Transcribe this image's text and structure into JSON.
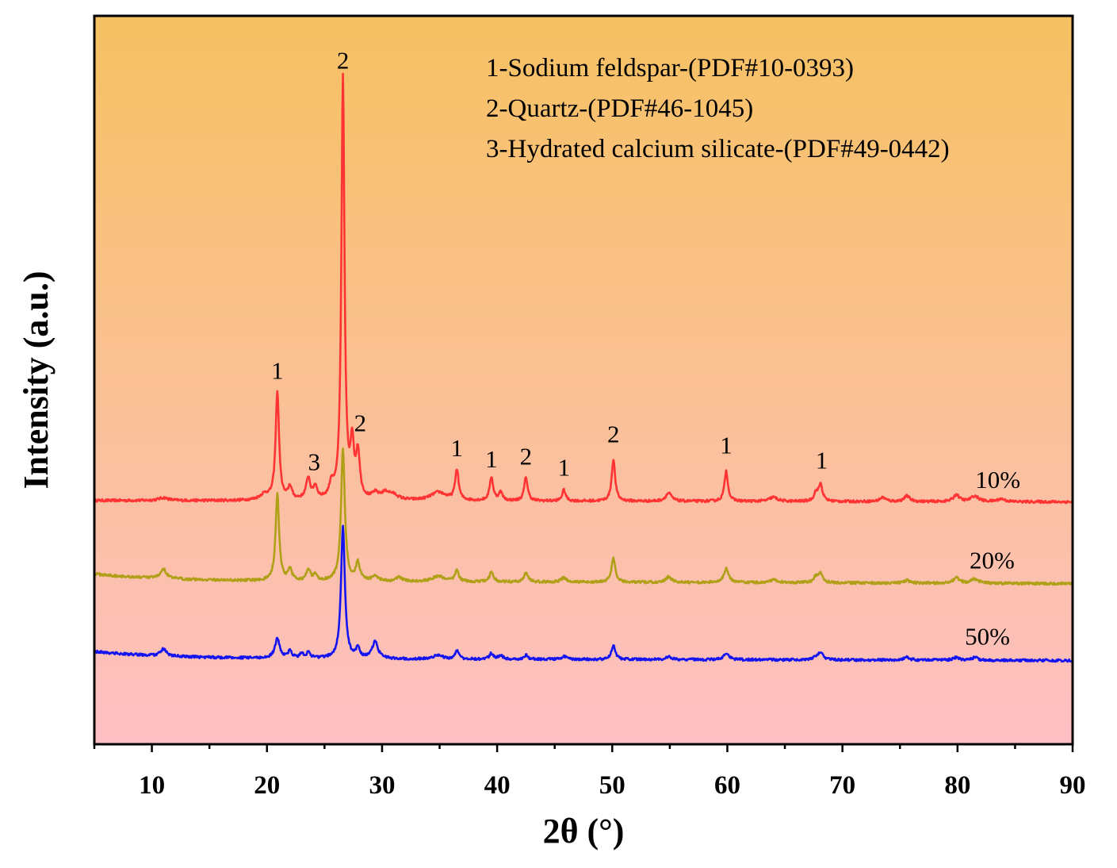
{
  "chart_data": {
    "type": "line",
    "xlabel": "2θ (°)",
    "ylabel": "Intensity (a.u.)",
    "xlim": [
      5,
      90
    ],
    "x_ticks": [
      10,
      20,
      30,
      40,
      50,
      60,
      70,
      80,
      90
    ],
    "y_ticks_shown": false,
    "grid": false,
    "background_gradient": [
      "#f6c162",
      "#fec0c4"
    ],
    "legend": {
      "placement": "top-right",
      "entries": [
        "1-Sodium feldspar-(PDF#10-0393)",
        "2-Quartz-(PDF#46-1045)",
        "3-Hydrated calcium silicate-(PDF#49-0442)"
      ]
    },
    "series": [
      {
        "name": "10%",
        "color": "#ff3333",
        "baseline": 0.78,
        "baseline_slope": -0.01,
        "peaks": [
          [
            11.0,
            0.02,
            0.5
          ],
          [
            19.8,
            0.04,
            0.5
          ],
          [
            20.9,
            0.78,
            0.18
          ],
          [
            22.0,
            0.09,
            0.2
          ],
          [
            23.5,
            0.04,
            0.3
          ],
          [
            23.6,
            0.12,
            0.18
          ],
          [
            24.2,
            0.09,
            0.2
          ],
          [
            25.6,
            0.1,
            0.2
          ],
          [
            26.6,
            3.05,
            0.16
          ],
          [
            27.4,
            0.37,
            0.18
          ],
          [
            27.9,
            0.32,
            0.2
          ],
          [
            29.4,
            0.04,
            0.3
          ],
          [
            30.3,
            0.05,
            0.5
          ],
          [
            31.0,
            0.03,
            0.5
          ],
          [
            34.9,
            0.06,
            0.8
          ],
          [
            36.5,
            0.22,
            0.18
          ],
          [
            39.5,
            0.17,
            0.18
          ],
          [
            40.3,
            0.06,
            0.2
          ],
          [
            42.5,
            0.17,
            0.18
          ],
          [
            45.8,
            0.08,
            0.18
          ],
          [
            50.1,
            0.3,
            0.18
          ],
          [
            54.9,
            0.06,
            0.3
          ],
          [
            59.9,
            0.22,
            0.18
          ],
          [
            64.0,
            0.03,
            0.4
          ],
          [
            67.7,
            0.06,
            0.2
          ],
          [
            68.1,
            0.12,
            0.2
          ],
          [
            73.5,
            0.03,
            0.3
          ],
          [
            75.6,
            0.04,
            0.3
          ],
          [
            79.9,
            0.05,
            0.3
          ],
          [
            81.5,
            0.04,
            0.4
          ],
          [
            83.8,
            0.02,
            0.4
          ]
        ]
      },
      {
        "name": "20%",
        "color": "#b0a018",
        "baseline": 0.2,
        "baseline_slope": -0.02,
        "peaks": [
          [
            11.0,
            0.07,
            0.3
          ],
          [
            20.9,
            0.63,
            0.18
          ],
          [
            22.0,
            0.08,
            0.2
          ],
          [
            23.6,
            0.08,
            0.2
          ],
          [
            24.2,
            0.04,
            0.2
          ],
          [
            26.6,
            0.95,
            0.2
          ],
          [
            27.9,
            0.13,
            0.2
          ],
          [
            29.4,
            0.04,
            0.3
          ],
          [
            31.5,
            0.03,
            0.3
          ],
          [
            34.9,
            0.04,
            0.6
          ],
          [
            36.5,
            0.08,
            0.2
          ],
          [
            39.5,
            0.07,
            0.2
          ],
          [
            42.5,
            0.07,
            0.2
          ],
          [
            45.8,
            0.03,
            0.3
          ],
          [
            50.1,
            0.17,
            0.2
          ],
          [
            54.9,
            0.04,
            0.3
          ],
          [
            59.9,
            0.1,
            0.25
          ],
          [
            64.0,
            0.02,
            0.4
          ],
          [
            67.7,
            0.04,
            0.25
          ],
          [
            68.1,
            0.06,
            0.25
          ],
          [
            75.6,
            0.02,
            0.3
          ],
          [
            79.9,
            0.04,
            0.3
          ],
          [
            81.5,
            0.03,
            0.4
          ]
        ]
      },
      {
        "name": "50%",
        "color": "#1414f0",
        "baseline": -0.36,
        "baseline_slope": -0.015,
        "peaks": [
          [
            11.0,
            0.05,
            0.3
          ],
          [
            20.9,
            0.14,
            0.25
          ],
          [
            22.0,
            0.05,
            0.2
          ],
          [
            23.0,
            0.03,
            0.2
          ],
          [
            23.6,
            0.04,
            0.2
          ],
          [
            26.6,
            0.95,
            0.2
          ],
          [
            27.9,
            0.07,
            0.2
          ],
          [
            29.4,
            0.12,
            0.3
          ],
          [
            34.9,
            0.03,
            0.4
          ],
          [
            36.5,
            0.06,
            0.2
          ],
          [
            39.5,
            0.04,
            0.2
          ],
          [
            40.3,
            0.03,
            0.2
          ],
          [
            42.5,
            0.03,
            0.2
          ],
          [
            45.8,
            0.02,
            0.3
          ],
          [
            50.1,
            0.1,
            0.2
          ],
          [
            54.9,
            0.02,
            0.3
          ],
          [
            59.9,
            0.05,
            0.25
          ],
          [
            67.7,
            0.02,
            0.3
          ],
          [
            68.1,
            0.05,
            0.25
          ],
          [
            75.6,
            0.02,
            0.3
          ],
          [
            79.9,
            0.02,
            0.3
          ],
          [
            81.5,
            0.02,
            0.3
          ]
        ]
      }
    ],
    "series_labels": [
      {
        "text": "10%",
        "x": 83.5,
        "y": 0.87
      },
      {
        "text": "20%",
        "x": 83.0,
        "y": 0.29
      },
      {
        "text": "50%",
        "x": 82.6,
        "y": -0.26
      }
    ],
    "peak_labels": [
      {
        "text": "1",
        "x": 20.9,
        "y": 1.66
      },
      {
        "text": "2",
        "x": 26.6,
        "y": 3.9
      },
      {
        "text": "3",
        "x": 24.1,
        "y": 1.0
      },
      {
        "text": "2",
        "x": 28.1,
        "y": 1.28
      },
      {
        "text": "1",
        "x": 36.5,
        "y": 1.1
      },
      {
        "text": "1",
        "x": 39.5,
        "y": 1.02
      },
      {
        "text": "2",
        "x": 42.5,
        "y": 1.04
      },
      {
        "text": "1",
        "x": 45.8,
        "y": 0.96
      },
      {
        "text": "2",
        "x": 50.1,
        "y": 1.2
      },
      {
        "text": "1",
        "x": 59.9,
        "y": 1.12
      },
      {
        "text": "1",
        "x": 68.2,
        "y": 1.01
      }
    ],
    "ylim": [
      -0.98,
      4.28
    ]
  }
}
